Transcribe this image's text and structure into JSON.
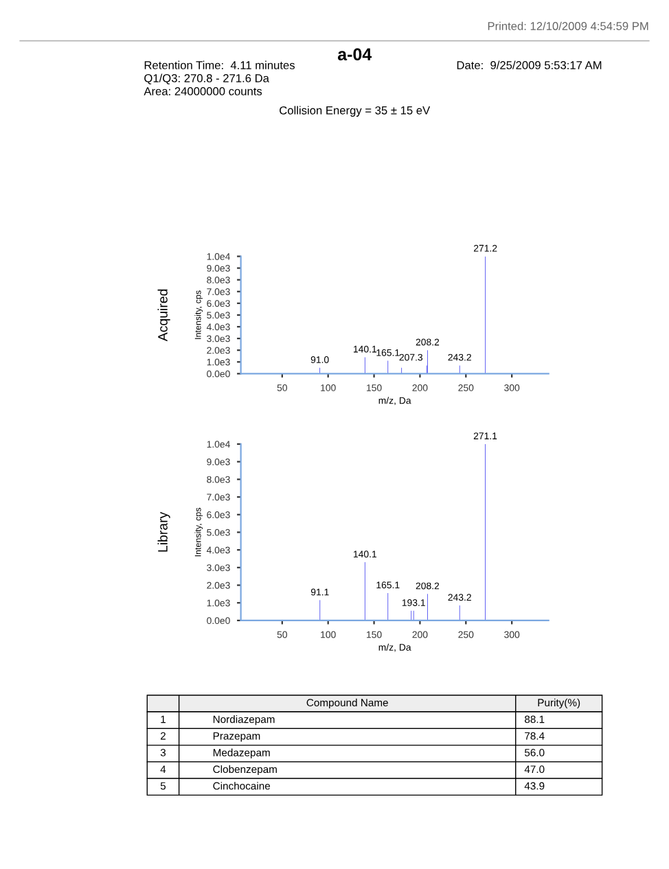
{
  "chart_data": [
    {
      "type": "bar",
      "title": "Acquired",
      "subtitle": "a-04",
      "xlabel": "m/z, Da",
      "ylabel": "Intensity, cps",
      "color": "#3b3bf0",
      "annotations": [
        "Retention Time:  4.11 minutes",
        "Q1/Q3: 270.8 - 271.6 Da",
        "Area: 24000000 counts",
        "Date:  9/25/2009 5:53:17 AM",
        "Printed: 12/10/2009 4:54:59 PM",
        "Collision Energy = 35 ± 15 eV",
        {
          "text": "91.0",
          "x": 91.0,
          "y": 500
        },
        {
          "text": "140.1",
          "x": 140.1,
          "y": 1400
        },
        {
          "text": "165.1",
          "x": 165.1,
          "y": 1100
        },
        {
          "text": "207.3",
          "x": 207.3,
          "y": 700
        },
        {
          "text": "208.2",
          "x": 208.2,
          "y": 2000
        },
        {
          "text": "243.2",
          "x": 243.2,
          "y": 700
        },
        {
          "text": "271.2",
          "x": 271.2,
          "y": 10000
        }
      ],
      "x": [
        91.0,
        140.1,
        165.1,
        180,
        207.3,
        208.2,
        243.2,
        271.2
      ],
      "values": [
        500,
        1400,
        1100,
        500,
        700,
        2000,
        700,
        10000
      ],
      "xlim": [
        5,
        340
      ],
      "xticks": [
        50,
        100,
        150,
        200,
        250,
        300
      ],
      "ylim": [
        0,
        10000
      ],
      "yticks": [
        {
          "value": 0,
          "label": "0.0e0"
        },
        {
          "value": 1000,
          "label": "1.0e3"
        },
        {
          "value": 2000,
          "label": "2.0e3"
        },
        {
          "value": 3000,
          "label": "3.0e3"
        },
        {
          "value": 4000,
          "label": "4.0e3"
        },
        {
          "value": 5000,
          "label": "5.0e3"
        },
        {
          "value": 6000,
          "label": "6.0e3"
        },
        {
          "value": 7000,
          "label": "7.0e3"
        },
        {
          "value": 8000,
          "label": "8.0e3"
        },
        {
          "value": 9000,
          "label": "9.0e3"
        },
        {
          "value": 10000,
          "label": "1.0e4"
        }
      ]
    },
    {
      "type": "bar",
      "title": "Library",
      "xlabel": "m/z, Da",
      "ylabel": "Intensity, cps",
      "color": "#3b3bf0",
      "annotations": [
        "Compound Name",
        "Purity(%)",
        "1",
        "Nordiazepam",
        "88.1",
        "2",
        "Prazepam",
        "78.4",
        "3",
        "Medazepam",
        "56.0",
        "4",
        "Clobenzepam",
        "47.0",
        "5",
        "Cinchocaine",
        "43.9",
        {
          "text": "91.1",
          "x": 91.1,
          "y": 1150
        },
        {
          "text": "140.1",
          "x": 140.1,
          "y": 3300
        },
        {
          "text": "165.1",
          "x": 165.1,
          "y": 1550
        },
        {
          "text": "193.1",
          "x": 193.1,
          "y": 550
        },
        {
          "text": "208.2",
          "x": 208.2,
          "y": 1500
        },
        {
          "text": "243.2",
          "x": 243.2,
          "y": 850
        },
        {
          "text": "271.1",
          "x": 271.1,
          "y": 10000
        }
      ],
      "x": [
        91.1,
        140.1,
        165.1,
        190.5,
        193.1,
        208.2,
        243.2,
        271.1
      ],
      "values": [
        1150,
        3300,
        1550,
        550,
        550,
        1500,
        850,
        10000
      ],
      "xlim": [
        5,
        340
      ],
      "xticks": [
        50,
        100,
        150,
        200,
        250,
        300
      ],
      "ylim": [
        0,
        10000
      ],
      "yticks": [
        {
          "value": 0,
          "label": "0.0e0"
        },
        {
          "value": 1000,
          "label": "1.0e3"
        },
        {
          "value": 2000,
          "label": "2.0e3"
        },
        {
          "value": 3000,
          "label": "3.0e3"
        },
        {
          "value": 4000,
          "label": "4.0e3"
        },
        {
          "value": 5000,
          "label": "5.0e3"
        },
        {
          "value": 6000,
          "label": "6.0e3"
        },
        {
          "value": 7000,
          "label": "7.0e3"
        },
        {
          "value": 8000,
          "label": "8.0e3"
        },
        {
          "value": 9000,
          "label": "9.0e3"
        },
        {
          "value": 10000,
          "label": "1.0e4"
        }
      ]
    }
  ]
}
